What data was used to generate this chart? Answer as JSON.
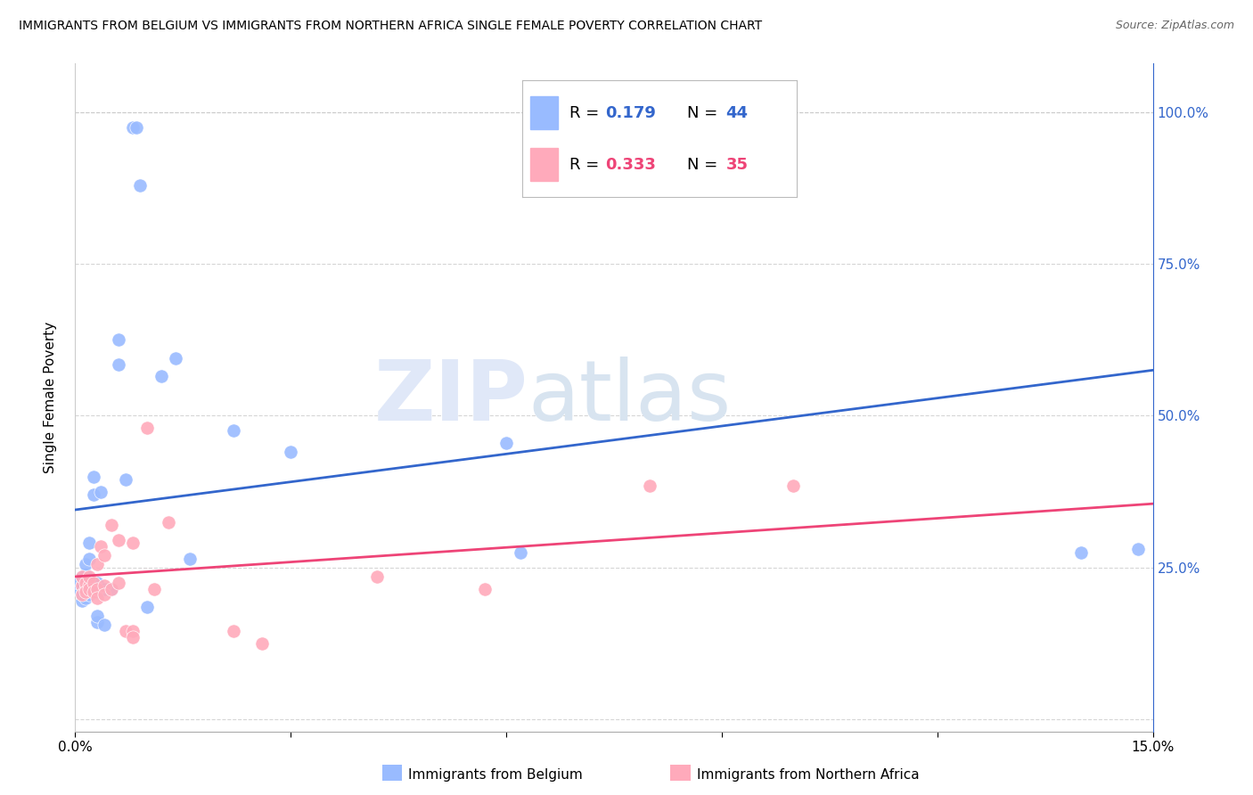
{
  "title": "IMMIGRANTS FROM BELGIUM VS IMMIGRANTS FROM NORTHERN AFRICA SINGLE FEMALE POVERTY CORRELATION CHART",
  "source": "Source: ZipAtlas.com",
  "ylabel": "Single Female Poverty",
  "y_ticks": [
    0.0,
    0.25,
    0.5,
    0.75,
    1.0
  ],
  "y_tick_labels": [
    "",
    "25.0%",
    "50.0%",
    "75.0%",
    "100.0%"
  ],
  "x_ticks": [
    0.0,
    0.03,
    0.06,
    0.09,
    0.12,
    0.15
  ],
  "x_tick_labels": [
    "0.0%",
    "",
    "",
    "",
    "",
    "15.0%"
  ],
  "xlim": [
    0.0,
    0.15
  ],
  "ylim": [
    -0.02,
    1.08
  ],
  "blue_color": "#99BBFF",
  "pink_color": "#FFAABB",
  "line_blue": "#3366CC",
  "line_pink": "#EE4477",
  "watermark_zip": "ZIP",
  "watermark_atlas": "atlas",
  "belgium_scatter": [
    [
      0.0005,
      0.215
    ],
    [
      0.0005,
      0.225
    ],
    [
      0.001,
      0.195
    ],
    [
      0.001,
      0.205
    ],
    [
      0.001,
      0.22
    ],
    [
      0.001,
      0.235
    ],
    [
      0.0015,
      0.2
    ],
    [
      0.0015,
      0.215
    ],
    [
      0.0015,
      0.225
    ],
    [
      0.0015,
      0.24
    ],
    [
      0.0015,
      0.255
    ],
    [
      0.002,
      0.205
    ],
    [
      0.002,
      0.22
    ],
    [
      0.002,
      0.265
    ],
    [
      0.002,
      0.29
    ],
    [
      0.0025,
      0.37
    ],
    [
      0.0025,
      0.4
    ],
    [
      0.003,
      0.21
    ],
    [
      0.003,
      0.225
    ],
    [
      0.003,
      0.16
    ],
    [
      0.003,
      0.17
    ],
    [
      0.0035,
      0.375
    ],
    [
      0.004,
      0.215
    ],
    [
      0.004,
      0.155
    ],
    [
      0.005,
      0.215
    ],
    [
      0.006,
      0.585
    ],
    [
      0.006,
      0.625
    ],
    [
      0.007,
      0.395
    ],
    [
      0.008,
      0.975
    ],
    [
      0.0085,
      0.975
    ],
    [
      0.009,
      0.88
    ],
    [
      0.01,
      0.185
    ],
    [
      0.012,
      0.565
    ],
    [
      0.014,
      0.595
    ],
    [
      0.016,
      0.265
    ],
    [
      0.022,
      0.475
    ],
    [
      0.03,
      0.44
    ],
    [
      0.06,
      0.455
    ],
    [
      0.062,
      0.275
    ],
    [
      0.14,
      0.275
    ],
    [
      0.148,
      0.28
    ]
  ],
  "northern_africa_scatter": [
    [
      0.001,
      0.22
    ],
    [
      0.001,
      0.235
    ],
    [
      0.001,
      0.205
    ],
    [
      0.0015,
      0.215
    ],
    [
      0.0015,
      0.225
    ],
    [
      0.0015,
      0.21
    ],
    [
      0.002,
      0.22
    ],
    [
      0.002,
      0.215
    ],
    [
      0.002,
      0.235
    ],
    [
      0.0025,
      0.225
    ],
    [
      0.0025,
      0.21
    ],
    [
      0.003,
      0.255
    ],
    [
      0.003,
      0.215
    ],
    [
      0.003,
      0.2
    ],
    [
      0.0035,
      0.285
    ],
    [
      0.004,
      0.27
    ],
    [
      0.004,
      0.22
    ],
    [
      0.004,
      0.205
    ],
    [
      0.005,
      0.32
    ],
    [
      0.005,
      0.215
    ],
    [
      0.006,
      0.295
    ],
    [
      0.006,
      0.225
    ],
    [
      0.007,
      0.145
    ],
    [
      0.008,
      0.29
    ],
    [
      0.008,
      0.145
    ],
    [
      0.008,
      0.135
    ],
    [
      0.01,
      0.48
    ],
    [
      0.011,
      0.215
    ],
    [
      0.013,
      0.325
    ],
    [
      0.022,
      0.145
    ],
    [
      0.026,
      0.125
    ],
    [
      0.042,
      0.235
    ],
    [
      0.057,
      0.215
    ],
    [
      0.08,
      0.385
    ],
    [
      0.1,
      0.385
    ]
  ],
  "belgium_line_x": [
    0.0,
    0.15
  ],
  "belgium_line_y": [
    0.345,
    0.575
  ],
  "n_africa_line_x": [
    0.0,
    0.15
  ],
  "n_africa_line_y": [
    0.235,
    0.355
  ]
}
